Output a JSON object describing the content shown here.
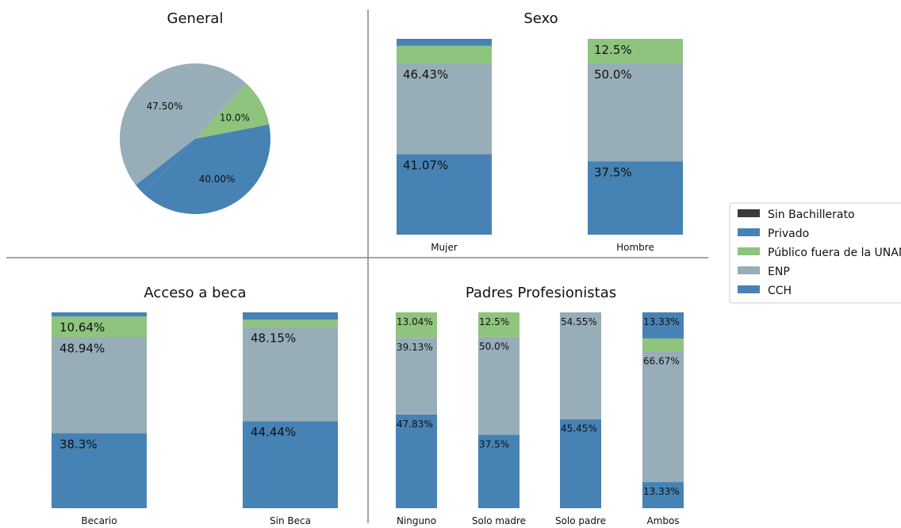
{
  "colors": {
    "cch": "#4682b4",
    "enp": "#97adb8",
    "publico": "#8fc47e",
    "privado": "#4682b4",
    "sin_bachillerato": "#3a3a3e",
    "separator": "#888888"
  },
  "legend": {
    "position": "right",
    "entries": [
      {
        "key": "sin_bachillerato",
        "label": "Sin Bachillerato"
      },
      {
        "key": "privado",
        "label": "Privado"
      },
      {
        "key": "publico",
        "label": "Público fuera de la UNAM"
      },
      {
        "key": "enp",
        "label": "ENP"
      },
      {
        "key": "cch",
        "label": "CCH"
      }
    ]
  },
  "chart_data": [
    {
      "type": "pie",
      "title": "General",
      "slices": [
        {
          "key": "cch",
          "value": 40.0,
          "label": "40.00%"
        },
        {
          "key": "publico",
          "value": 10.0,
          "label": "10.0%"
        },
        {
          "key": "enp",
          "value": 47.5,
          "label": "47.50%"
        },
        {
          "key": "privado",
          "value": 2.5,
          "label": ""
        }
      ]
    },
    {
      "type": "bar",
      "stacked": true,
      "title": "Sexo",
      "categories": [
        "Mujer",
        "Hombre"
      ],
      "series": [
        {
          "key": "cch",
          "values": [
            41.07,
            37.5
          ],
          "labels": [
            "41.07%",
            "37.5%"
          ]
        },
        {
          "key": "enp",
          "values": [
            46.43,
            50.0
          ],
          "labels": [
            "46.43%",
            "50.0%"
          ]
        },
        {
          "key": "publico",
          "values": [
            8.93,
            12.5
          ],
          "labels": [
            "",
            "12.5%"
          ]
        },
        {
          "key": "privado",
          "values": [
            3.57,
            0
          ],
          "labels": [
            "",
            ""
          ]
        }
      ]
    },
    {
      "type": "bar",
      "stacked": true,
      "title": "Acceso a beca",
      "categories": [
        "Becario",
        "Sin Beca"
      ],
      "series": [
        {
          "key": "cch",
          "values": [
            38.3,
            44.44
          ],
          "labels": [
            "38.3%",
            "44.44%"
          ]
        },
        {
          "key": "enp",
          "values": [
            48.94,
            48.15
          ],
          "labels": [
            "48.94%",
            "48.15%"
          ]
        },
        {
          "key": "publico",
          "values": [
            10.64,
            3.7
          ],
          "labels": [
            "10.64%",
            ""
          ]
        },
        {
          "key": "privado",
          "values": [
            2.12,
            3.71
          ],
          "labels": [
            "",
            ""
          ]
        }
      ]
    },
    {
      "type": "bar",
      "stacked": true,
      "title": "Padres Profesionistas",
      "categories": [
        "Ninguno",
        "Solo madre",
        "Solo padre",
        "Ambos"
      ],
      "series": [
        {
          "key": "cch",
          "values": [
            47.83,
            37.5,
            45.45,
            13.33
          ],
          "labels": [
            "47.83%",
            "37.5%",
            "45.45%",
            "13.33%"
          ]
        },
        {
          "key": "enp",
          "values": [
            39.13,
            50.0,
            54.55,
            66.67
          ],
          "labels": [
            "39.13%",
            "50.0%",
            "54.55%",
            "66.67%"
          ]
        },
        {
          "key": "publico",
          "values": [
            13.04,
            12.5,
            0,
            6.67
          ],
          "labels": [
            "13.04%",
            "12.5%",
            "",
            ""
          ]
        },
        {
          "key": "privado",
          "values": [
            0,
            0,
            0,
            13.33
          ],
          "labels": [
            "",
            "",
            "",
            "13.33%"
          ]
        }
      ]
    }
  ]
}
